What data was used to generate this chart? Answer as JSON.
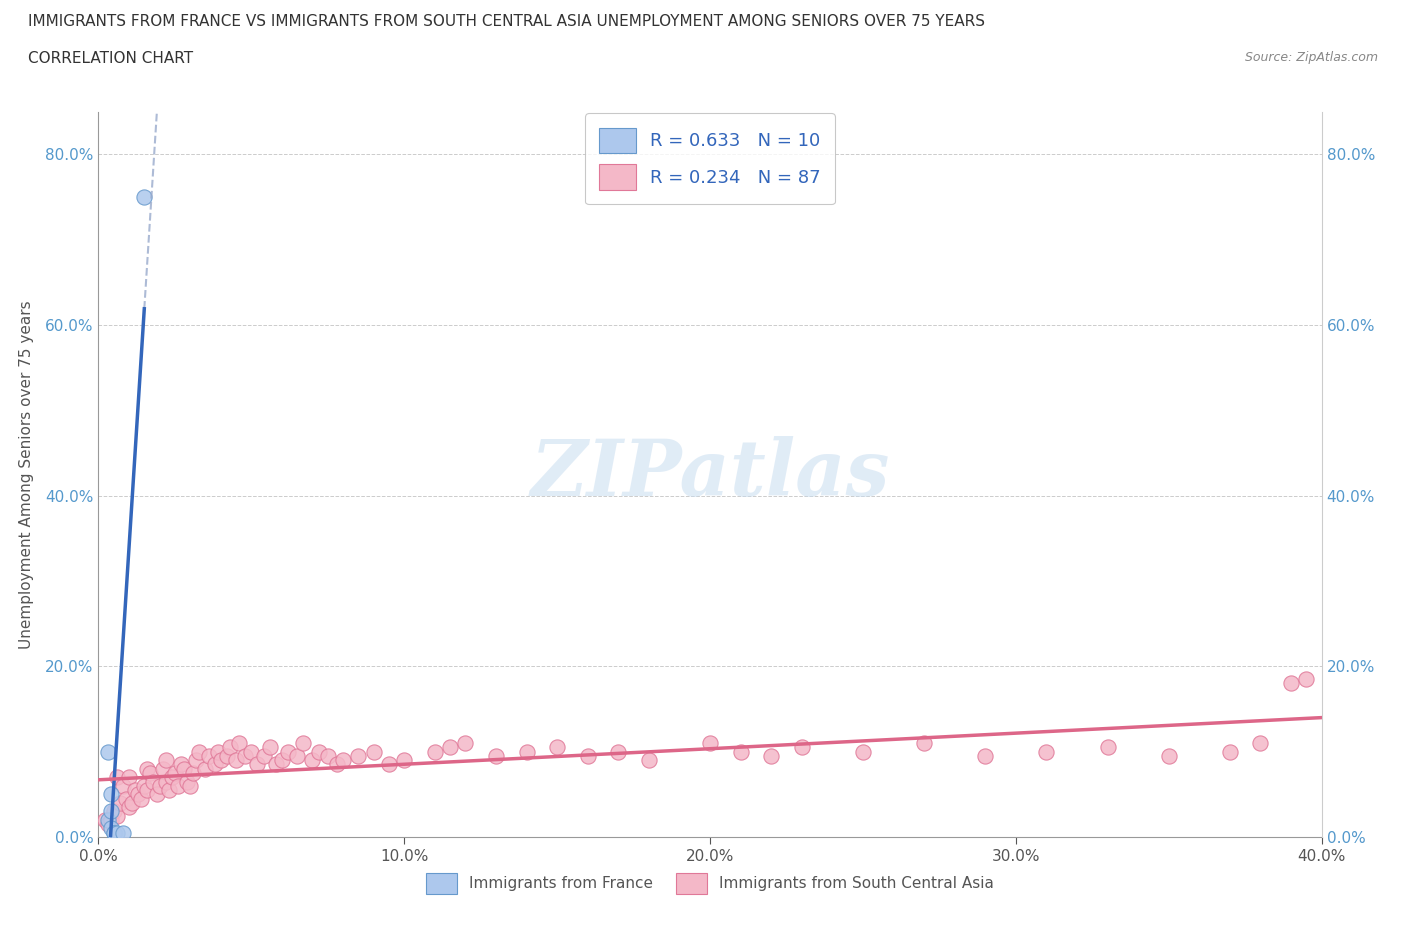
{
  "title_line1": "IMMIGRANTS FROM FRANCE VS IMMIGRANTS FROM SOUTH CENTRAL ASIA UNEMPLOYMENT AMONG SENIORS OVER 75 YEARS",
  "title_line2": "CORRELATION CHART",
  "source_text": "Source: ZipAtlas.com",
  "xlabel_france": "Immigrants from France",
  "xlabel_sca": "Immigrants from South Central Asia",
  "ylabel": "Unemployment Among Seniors over 75 years",
  "xlim": [
    0.0,
    0.4
  ],
  "ylim": [
    0.0,
    0.85
  ],
  "xtick_labels": [
    "0.0%",
    "10.0%",
    "20.0%",
    "30.0%",
    "40.0%"
  ],
  "xtick_values": [
    0.0,
    0.1,
    0.2,
    0.3,
    0.4
  ],
  "ytick_labels": [
    "0.0%",
    "20.0%",
    "40.0%",
    "60.0%",
    "80.0%"
  ],
  "ytick_values": [
    0.0,
    0.2,
    0.4,
    0.6,
    0.8
  ],
  "france_color": "#adc8ed",
  "france_edge_color": "#6699cc",
  "sca_color": "#f4b8c8",
  "sca_edge_color": "#e07898",
  "trend_france_color": "#3366bb",
  "trend_sca_color": "#dd6688",
  "trend_france_dash_color": "#99aacc",
  "R_france": "0.633",
  "N_france": "10",
  "R_sca": "0.234",
  "N_sca": "87",
  "watermark": "ZIPatlas",
  "france_x": [
    0.003,
    0.003,
    0.004,
    0.004,
    0.004,
    0.005,
    0.005,
    0.006,
    0.008,
    0.015
  ],
  "france_y": [
    0.02,
    0.1,
    0.01,
    0.03,
    0.05,
    0.005,
    0.005,
    0.005,
    0.005,
    0.75
  ],
  "sca_x": [
    0.002,
    0.003,
    0.004,
    0.005,
    0.006,
    0.006,
    0.007,
    0.008,
    0.009,
    0.01,
    0.01,
    0.011,
    0.012,
    0.013,
    0.014,
    0.015,
    0.016,
    0.016,
    0.017,
    0.018,
    0.019,
    0.02,
    0.021,
    0.022,
    0.022,
    0.023,
    0.024,
    0.025,
    0.026,
    0.027,
    0.028,
    0.029,
    0.03,
    0.031,
    0.032,
    0.033,
    0.035,
    0.036,
    0.038,
    0.039,
    0.04,
    0.042,
    0.043,
    0.045,
    0.046,
    0.048,
    0.05,
    0.052,
    0.054,
    0.056,
    0.058,
    0.06,
    0.062,
    0.065,
    0.067,
    0.07,
    0.072,
    0.075,
    0.078,
    0.08,
    0.085,
    0.09,
    0.095,
    0.1,
    0.11,
    0.115,
    0.12,
    0.13,
    0.14,
    0.15,
    0.16,
    0.17,
    0.18,
    0.2,
    0.21,
    0.22,
    0.23,
    0.25,
    0.27,
    0.29,
    0.31,
    0.33,
    0.35,
    0.37,
    0.38,
    0.39,
    0.395
  ],
  "sca_y": [
    0.02,
    0.015,
    0.02,
    0.03,
    0.025,
    0.07,
    0.04,
    0.06,
    0.045,
    0.035,
    0.07,
    0.04,
    0.055,
    0.05,
    0.045,
    0.06,
    0.055,
    0.08,
    0.075,
    0.065,
    0.05,
    0.06,
    0.08,
    0.065,
    0.09,
    0.055,
    0.07,
    0.075,
    0.06,
    0.085,
    0.08,
    0.065,
    0.06,
    0.075,
    0.09,
    0.1,
    0.08,
    0.095,
    0.085,
    0.1,
    0.09,
    0.095,
    0.105,
    0.09,
    0.11,
    0.095,
    0.1,
    0.085,
    0.095,
    0.105,
    0.085,
    0.09,
    0.1,
    0.095,
    0.11,
    0.09,
    0.1,
    0.095,
    0.085,
    0.09,
    0.095,
    0.1,
    0.085,
    0.09,
    0.1,
    0.105,
    0.11,
    0.095,
    0.1,
    0.105,
    0.095,
    0.1,
    0.09,
    0.11,
    0.1,
    0.095,
    0.105,
    0.1,
    0.11,
    0.095,
    0.1,
    0.105,
    0.095,
    0.1,
    0.11,
    0.18,
    0.185
  ]
}
